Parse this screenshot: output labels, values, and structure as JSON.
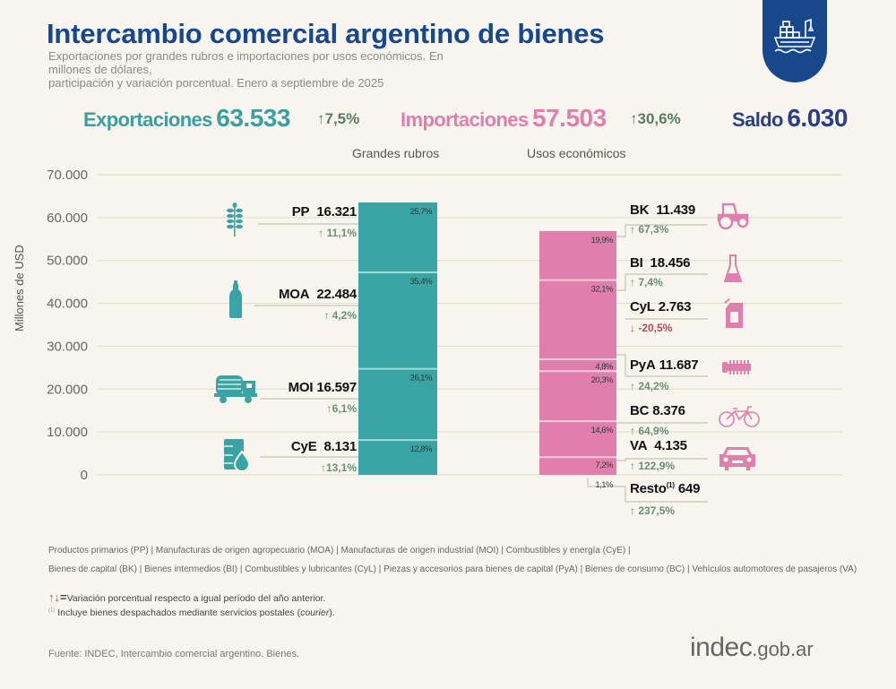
{
  "header": {
    "title": "Intercambio comercial argentino de bienes",
    "subtitle_line1": "Exportaciones por grandes rubros e importaciones por usos económicos. En millones de dólares,",
    "subtitle_line2": "participación y variación porcentual. Enero a septiembre de 2025",
    "badge_icon": "cargo-ship-icon"
  },
  "kpis": {
    "exports_label": "Exportaciones",
    "exports_value": "63.533",
    "exports_var": "↑7,5%",
    "imports_label": "Importaciones",
    "imports_value": "57.503",
    "imports_var": "↑30,6%",
    "balance_label": "Saldo",
    "balance_value": "6.030"
  },
  "colors": {
    "exports": "#3aa3a3",
    "imports": "#e07fab",
    "title": "#17478c",
    "positive": "#557f62",
    "negative": "#b24a5a"
  },
  "chart_data": {
    "type": "bar",
    "stacked": true,
    "title": "Intercambio comercial argentino de bienes",
    "ylabel": "Millones de USD",
    "ylim": [
      0,
      70000
    ],
    "yticks": [
      "70.000",
      "60.000",
      "50.000",
      "40.000",
      "30.000",
      "20.000",
      "10.000",
      "0"
    ],
    "ytick_values": [
      70000,
      60000,
      50000,
      40000,
      30000,
      20000,
      10000,
      0
    ],
    "grid": true,
    "categories": [
      "Grandes rubros",
      "Usos económicos"
    ],
    "series": [
      {
        "name": "Exportaciones",
        "column": "Grandes rubros",
        "segments": [
          {
            "code": "CyE",
            "value": 8131,
            "value_label": "8.131",
            "share": "12,8%",
            "var": "↑13,1%",
            "icon": "oil-barrel-drop-icon"
          },
          {
            "code": "MOI",
            "value": 16597,
            "value_label": "16.597",
            "share": "26,1%",
            "var": "↑6,1%",
            "icon": "truck-icon"
          },
          {
            "code": "MOA",
            "value": 22484,
            "value_label": "22.484",
            "share": "35,4%",
            "var": "↑ 4,2%",
            "icon": "bottle-icon"
          },
          {
            "code": "PP",
            "value": 16321,
            "value_label": "16.321",
            "share": "25,7%",
            "var": "↑ 11,1%",
            "icon": "wheat-icon"
          }
        ]
      },
      {
        "name": "Importaciones",
        "column": "Usos económicos",
        "segments": [
          {
            "code": "VA",
            "value": 4135,
            "value_label": "4.135",
            "share": "7,2%",
            "var": "↑ 122,9%",
            "icon": "car-icon"
          },
          {
            "code": "BC",
            "value": 8376,
            "value_label": "8.376",
            "share": "14,6%",
            "var": "↑ 64,9%",
            "icon": "bicycle-icon"
          },
          {
            "code": "PyA",
            "value": 11687,
            "value_label": "11.687",
            "share": "20,3%",
            "var": "↑ 24,2%",
            "icon": "gear-part-icon"
          },
          {
            "code": "CyL",
            "value": 2763,
            "value_label": "2.763",
            "share": "4,8%",
            "var": "↓ -20,5%",
            "icon": "jerrycan-icon"
          },
          {
            "code": "BI",
            "value": 18456,
            "value_label": "18.456",
            "share": "32,1%",
            "var": "↑ 7,4%",
            "icon": "flask-icon"
          },
          {
            "code": "BK",
            "value": 11439,
            "value_label": "11.439",
            "share": "19,9%",
            "var": "↑ 67,3%",
            "icon": "tractor-icon"
          }
        ],
        "outside": {
          "code": "Resto",
          "footnote_mark": "(1)",
          "value": 649,
          "value_label": "649",
          "share": "1,1%",
          "var": "↑ 237,5%"
        }
      }
    ]
  },
  "legend": {
    "line1": [
      "Productos primarios (PP)",
      "Manufacturas de origen agropecuario (MOA)",
      "Manufacturas de origen industrial (MOI)",
      "Combustibles y energía (CyE)"
    ],
    "line2": [
      "Bienes de capital (BK)",
      "Bienes intermedios (BI)",
      "Combustibles y lubricantes (CyL)",
      "Piezas y accesorios para bienes de capital (PyA)",
      "Bienes de consumo (BC)",
      "Vehículos automotores de pasajeros (VA)"
    ],
    "separator": "|"
  },
  "notes": {
    "arrows_symbol": "=",
    "arrows_text": "Variación porcentual respecto a igual período del año anterior.",
    "footnote_mark": "(1)",
    "footnote_text": "Incluye bienes despachados mediante servicios postales (",
    "footnote_italic": "courier",
    "footnote_end": ")."
  },
  "footer": {
    "source": "Fuente: INDEC, Intercambio comercial argentino. Bienes.",
    "logo_main": "indec",
    "logo_domain": ".gob.ar"
  }
}
